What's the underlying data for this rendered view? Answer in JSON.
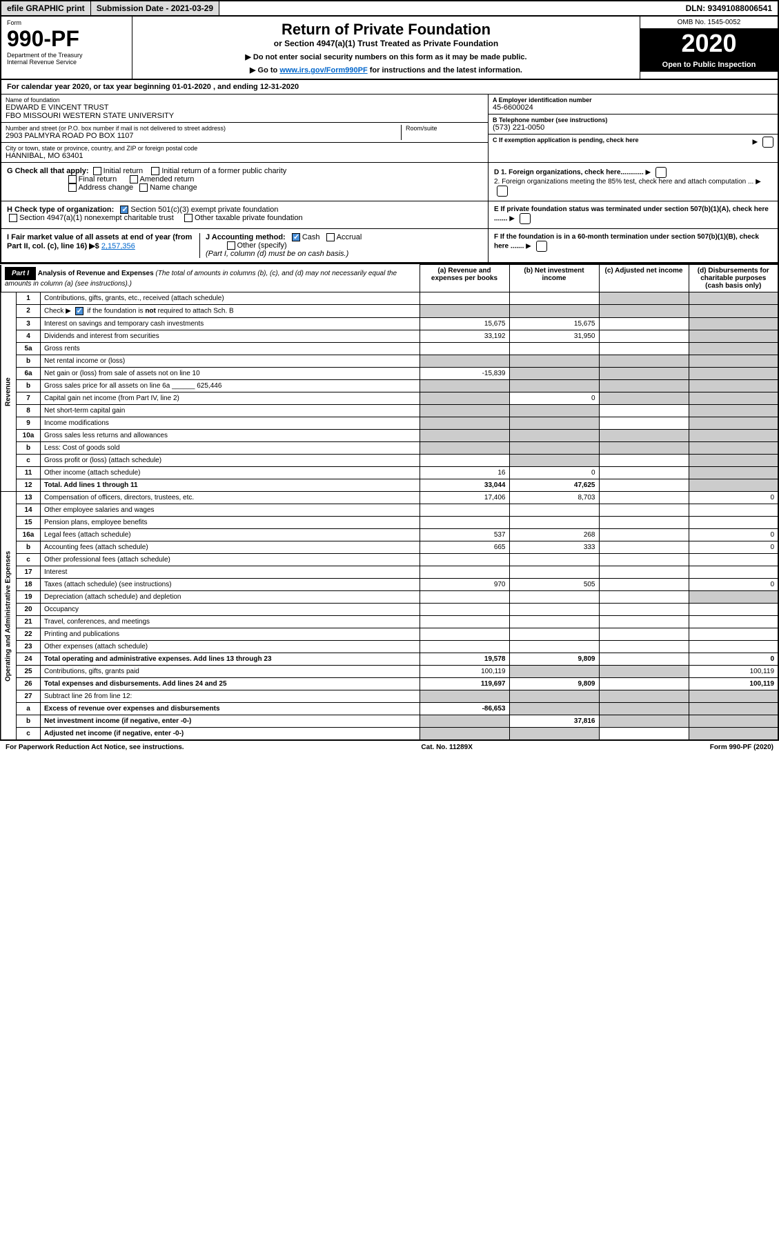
{
  "topbar": {
    "efile": "efile GRAPHIC print",
    "submission": "Submission Date - 2021-03-29",
    "dln": "DLN: 93491088006541"
  },
  "header": {
    "form_label": "Form",
    "form_number": "990-PF",
    "dept": "Department of the Treasury",
    "irs": "Internal Revenue Service",
    "title": "Return of Private Foundation",
    "subtitle": "or Section 4947(a)(1) Trust Treated as Private Foundation",
    "instr1": "▶ Do not enter social security numbers on this form as it may be made public.",
    "instr2_pre": "▶ Go to ",
    "instr2_link": "www.irs.gov/Form990PF",
    "instr2_post": " for instructions and the latest information.",
    "omb": "OMB No. 1545-0052",
    "year": "2020",
    "inspection": "Open to Public Inspection"
  },
  "calendar": {
    "text_pre": "For calendar year 2020, or tax year beginning ",
    "begin": "01-01-2020",
    "text_mid": " , and ending ",
    "end": "12-31-2020"
  },
  "foundation": {
    "name_lbl": "Name of foundation",
    "name1": "EDWARD E VINCENT TRUST",
    "name2": "FBO MISSOURI WESTERN STATE UNIVERSITY",
    "addr_lbl": "Number and street (or P.O. box number if mail is not delivered to street address)",
    "addr": "2903 PALMYRA ROAD PO BOX 1107",
    "room_lbl": "Room/suite",
    "city_lbl": "City or town, state or province, country, and ZIP or foreign postal code",
    "city": "HANNIBAL, MO  63401",
    "ein_lbl": "A Employer identification number",
    "ein": "45-6600024",
    "phone_lbl": "B Telephone number (see instructions)",
    "phone": "(573) 221-0050",
    "c_lbl": "C If exemption application is pending, check here"
  },
  "checks": {
    "g_lbl": "G Check all that apply:",
    "initial": "Initial return",
    "initial_former": "Initial return of a former public charity",
    "final": "Final return",
    "amended": "Amended return",
    "addr_change": "Address change",
    "name_change": "Name change",
    "h_lbl": "H Check type of organization:",
    "h_501c3": "Section 501(c)(3) exempt private foundation",
    "h_4947": "Section 4947(a)(1) nonexempt charitable trust",
    "h_other": "Other taxable private foundation",
    "i_lbl": "I Fair market value of all assets at end of year (from Part II, col. (c), line 16) ▶$ ",
    "i_val": "2,157,356",
    "j_lbl": "J Accounting method:",
    "j_cash": "Cash",
    "j_accrual": "Accrual",
    "j_other": "Other (specify)",
    "j_note": "(Part I, column (d) must be on cash basis.)",
    "d1": "D 1. Foreign organizations, check here............",
    "d2": "2. Foreign organizations meeting the 85% test, check here and attach computation ...",
    "e_lbl": "E  If private foundation status was terminated under section 507(b)(1)(A), check here .......",
    "f_lbl": "F  If the foundation is in a 60-month termination under section 507(b)(1)(B), check here ......."
  },
  "part1": {
    "label": "Part I",
    "title": "Analysis of Revenue and Expenses",
    "note": "(The total of amounts in columns (b), (c), and (d) may not necessarily equal the amounts in column (a) (see instructions).)",
    "col_a": "(a)  Revenue and expenses per books",
    "col_b": "(b)  Net investment income",
    "col_c": "(c)  Adjusted net income",
    "col_d": "(d)  Disbursements for charitable purposes (cash basis only)"
  },
  "sections": {
    "revenue": "Revenue",
    "expenses": "Operating and Administrative Expenses"
  },
  "rows": [
    {
      "n": "1",
      "d": "Contributions, gifts, grants, etc., received (attach schedule)",
      "a": "",
      "b": "",
      "c": "s",
      "dd": "s"
    },
    {
      "n": "2",
      "d": "Check ▶ ☑ if the foundation is not required to attach Sch. B",
      "a": "s",
      "b": "s",
      "c": "s",
      "dd": "s",
      "special": "check"
    },
    {
      "n": "3",
      "d": "Interest on savings and temporary cash investments",
      "a": "15,675",
      "b": "15,675",
      "c": "",
      "dd": "s"
    },
    {
      "n": "4",
      "d": "Dividends and interest from securities",
      "a": "33,192",
      "b": "31,950",
      "c": "",
      "dd": "s"
    },
    {
      "n": "5a",
      "d": "Gross rents",
      "a": "",
      "b": "",
      "c": "",
      "dd": "s"
    },
    {
      "n": "b",
      "d": "Net rental income or (loss)",
      "a": "s",
      "b": "s",
      "c": "s",
      "dd": "s"
    },
    {
      "n": "6a",
      "d": "Net gain or (loss) from sale of assets not on line 10",
      "a": "-15,839",
      "b": "s",
      "c": "s",
      "dd": "s"
    },
    {
      "n": "b",
      "d": "Gross sales price for all assets on line 6a ______ 625,446",
      "a": "s",
      "b": "s",
      "c": "s",
      "dd": "s"
    },
    {
      "n": "7",
      "d": "Capital gain net income (from Part IV, line 2)",
      "a": "s",
      "b": "0",
      "c": "s",
      "dd": "s"
    },
    {
      "n": "8",
      "d": "Net short-term capital gain",
      "a": "s",
      "b": "s",
      "c": "",
      "dd": "s"
    },
    {
      "n": "9",
      "d": "Income modifications",
      "a": "s",
      "b": "s",
      "c": "",
      "dd": "s"
    },
    {
      "n": "10a",
      "d": "Gross sales less returns and allowances",
      "a": "s",
      "b": "s",
      "c": "s",
      "dd": "s"
    },
    {
      "n": "b",
      "d": "Less: Cost of goods sold",
      "a": "s",
      "b": "s",
      "c": "s",
      "dd": "s"
    },
    {
      "n": "c",
      "d": "Gross profit or (loss) (attach schedule)",
      "a": "",
      "b": "s",
      "c": "",
      "dd": "s"
    },
    {
      "n": "11",
      "d": "Other income (attach schedule)",
      "a": "16",
      "b": "0",
      "c": "",
      "dd": "s"
    },
    {
      "n": "12",
      "d": "Total. Add lines 1 through 11",
      "a": "33,044",
      "b": "47,625",
      "c": "",
      "dd": "s",
      "bold": true
    },
    {
      "n": "13",
      "d": "Compensation of officers, directors, trustees, etc.",
      "a": "17,406",
      "b": "8,703",
      "c": "",
      "dd": "0"
    },
    {
      "n": "14",
      "d": "Other employee salaries and wages",
      "a": "",
      "b": "",
      "c": "",
      "dd": ""
    },
    {
      "n": "15",
      "d": "Pension plans, employee benefits",
      "a": "",
      "b": "",
      "c": "",
      "dd": ""
    },
    {
      "n": "16a",
      "d": "Legal fees (attach schedule)",
      "a": "537",
      "b": "268",
      "c": "",
      "dd": "0"
    },
    {
      "n": "b",
      "d": "Accounting fees (attach schedule)",
      "a": "665",
      "b": "333",
      "c": "",
      "dd": "0"
    },
    {
      "n": "c",
      "d": "Other professional fees (attach schedule)",
      "a": "",
      "b": "",
      "c": "",
      "dd": ""
    },
    {
      "n": "17",
      "d": "Interest",
      "a": "",
      "b": "",
      "c": "",
      "dd": ""
    },
    {
      "n": "18",
      "d": "Taxes (attach schedule) (see instructions)",
      "a": "970",
      "b": "505",
      "c": "",
      "dd": "0"
    },
    {
      "n": "19",
      "d": "Depreciation (attach schedule) and depletion",
      "a": "",
      "b": "",
      "c": "",
      "dd": "s"
    },
    {
      "n": "20",
      "d": "Occupancy",
      "a": "",
      "b": "",
      "c": "",
      "dd": ""
    },
    {
      "n": "21",
      "d": "Travel, conferences, and meetings",
      "a": "",
      "b": "",
      "c": "",
      "dd": ""
    },
    {
      "n": "22",
      "d": "Printing and publications",
      "a": "",
      "b": "",
      "c": "",
      "dd": ""
    },
    {
      "n": "23",
      "d": "Other expenses (attach schedule)",
      "a": "",
      "b": "",
      "c": "",
      "dd": ""
    },
    {
      "n": "24",
      "d": "Total operating and administrative expenses. Add lines 13 through 23",
      "a": "19,578",
      "b": "9,809",
      "c": "",
      "dd": "0",
      "bold": true
    },
    {
      "n": "25",
      "d": "Contributions, gifts, grants paid",
      "a": "100,119",
      "b": "s",
      "c": "s",
      "dd": "100,119"
    },
    {
      "n": "26",
      "d": "Total expenses and disbursements. Add lines 24 and 25",
      "a": "119,697",
      "b": "9,809",
      "c": "",
      "dd": "100,119",
      "bold": true
    },
    {
      "n": "27",
      "d": "Subtract line 26 from line 12:",
      "a": "s",
      "b": "s",
      "c": "s",
      "dd": "s"
    },
    {
      "n": "a",
      "d": "Excess of revenue over expenses and disbursements",
      "a": "-86,653",
      "b": "s",
      "c": "s",
      "dd": "s",
      "bold": true
    },
    {
      "n": "b",
      "d": "Net investment income (if negative, enter -0-)",
      "a": "s",
      "b": "37,816",
      "c": "s",
      "dd": "s",
      "bold": true
    },
    {
      "n": "c",
      "d": "Adjusted net income (if negative, enter -0-)",
      "a": "s",
      "b": "s",
      "c": "",
      "dd": "s",
      "bold": true
    }
  ],
  "footer": {
    "left": "For Paperwork Reduction Act Notice, see instructions.",
    "mid": "Cat. No. 11289X",
    "right": "Form 990-PF (2020)"
  },
  "colors": {
    "shade": "#cccccc",
    "check": "#4a90d9",
    "link": "#0066cc"
  }
}
